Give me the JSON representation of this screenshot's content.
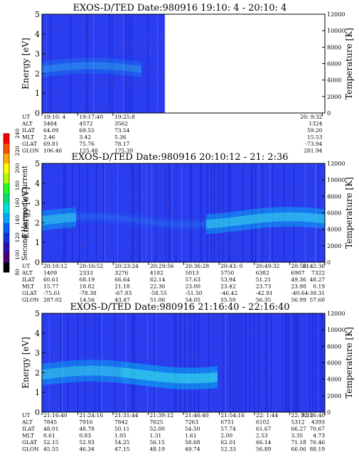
{
  "chart_data": [
    {
      "type": "heatmap",
      "title": "EXOS-D/TED   Date:980916  19:10: 4 - 20:10: 4",
      "ylabel": "Energy [eV]",
      "y2label": "Temperature [K]",
      "ylim": [
        0,
        5
      ],
      "y2lim": [
        0,
        12000
      ],
      "yticks": [
        "0",
        "1",
        "2",
        "3",
        "4",
        "5"
      ],
      "y2ticks": [
        "0",
        "2000",
        "4000",
        "6000",
        "8000",
        "10000",
        "12000"
      ],
      "time_range": [
        "19:10:04",
        "20:10:04"
      ],
      "data_coverage": [
        "19:10:04",
        "19:36:00"
      ],
      "band_center_ev": 2.2,
      "row_labels": [
        "UT",
        "ALT",
        "ILAT",
        "MLT",
        "GLAT",
        "GLON"
      ],
      "columns": [
        [
          "19:10: 4",
          "5484",
          "64.09",
          "2.46",
          "69.81",
          "106.46"
        ],
        [
          "19:17:40",
          "4572",
          "69.55",
          "3.42",
          "75.76",
          "125.48"
        ],
        [
          "19:25:8",
          "3562",
          "73.54",
          "5.36",
          "78.17",
          "175.39"
        ],
        [
          "20: 9:32",
          "1324",
          "59.20",
          "15.53",
          "-73.94",
          "281.94"
        ]
      ]
    },
    {
      "type": "heatmap",
      "title": "EXOS-D/TED   Date:980916  20:10:12 - 21: 2:36",
      "ylabel": "Energy [eV]",
      "y2label": "Temperature [K]",
      "ylim": [
        0,
        5
      ],
      "y2lim": [
        0,
        12000
      ],
      "yticks": [
        "0",
        "1",
        "2",
        "3",
        "4",
        "5"
      ],
      "y2ticks": [
        "0",
        "2000",
        "4000",
        "6000",
        "8000",
        "10000",
        "12000"
      ],
      "time_range": [
        "20:10:12",
        "21:02:36"
      ],
      "band_center_ev": 2.1,
      "row_labels": [
        "UT",
        "ALT",
        "ILAT",
        "MLT",
        "GLAT",
        "GLON"
      ],
      "columns": [
        [
          "20:10:12",
          "1409",
          "60.61",
          "15.77",
          "-75.61",
          "287.02"
        ],
        [
          "20:16:52",
          "2333",
          "68.19",
          "18.82",
          "-78.38",
          "14.56"
        ],
        [
          "20:23:24",
          "3276",
          "66.64",
          "21.18",
          "-67.83",
          "43.47"
        ],
        [
          "20:29:56",
          "4182",
          "62.14",
          "22.36",
          "-58.55",
          "51.06"
        ],
        [
          "20:36:28",
          "5013",
          "57.63",
          "23.00",
          "-51.50",
          "54.05"
        ],
        [
          "20:43: 0",
          "5750",
          "53.94",
          "23.42",
          "-46.42",
          "55.50"
        ],
        [
          "20:49:32",
          "6382",
          "51.21",
          "23.73",
          "-42.91",
          "56.35"
        ],
        [
          "20:56: 4",
          "6907",
          "49.36",
          "23.98",
          "-40.64",
          "56.99"
        ],
        [
          "21: 2:36",
          "7322",
          "48.27",
          "0.19",
          "-39.31",
          "57.60"
        ]
      ]
    },
    {
      "type": "heatmap",
      "title": "EXOS-D/TED   Date:980916  21:16:40 - 22:16:40",
      "ylabel": "Energy [eV]",
      "y2label": "Temperature [K]",
      "ylim": [
        0,
        5
      ],
      "y2lim": [
        0,
        12000
      ],
      "yticks": [
        "0",
        "1",
        "2",
        "3",
        "4",
        "5"
      ],
      "y2ticks": [
        "0",
        "2000",
        "4000",
        "6000",
        "8000",
        "10000",
        "12000"
      ],
      "time_range": [
        "21:16:40",
        "22:16:40"
      ],
      "band_center_ev": 1.9,
      "row_labels": [
        "UT",
        "ALT",
        "ILAT",
        "MLT",
        "GLAT",
        "GLON"
      ],
      "columns": [
        [
          "21:16:40",
          "7845",
          "48.01",
          "0.61",
          "52.15",
          "45.55"
        ],
        [
          "21:24:16",
          "7916",
          "48.78",
          "0.83",
          "52.93",
          "46.34"
        ],
        [
          "21:31:44",
          "7842",
          "50.11",
          "1.05",
          "54.25",
          "47.15"
        ],
        [
          "21:39:12",
          "7625",
          "52.00",
          "1.31",
          "56.15",
          "48.19"
        ],
        [
          "21:46:40",
          "7263",
          "54.50",
          "1.61",
          "58.68",
          "49.74"
        ],
        [
          "21:54:16",
          "6751",
          "57.74",
          "2.00",
          "62.01",
          "52.33"
        ],
        [
          "22: 1:44",
          "6102",
          "61.67",
          "2.53",
          "66.14",
          "56.89"
        ],
        [
          "22: 9:12",
          "5312",
          "66.27",
          "3.35",
          "71.18",
          "66.06"
        ],
        [
          "22:16:40",
          "4393",
          "70.67",
          "4.73",
          "76.46",
          "88.19"
        ]
      ]
    }
  ],
  "colorbar": {
    "label": "Second Harmonic Current",
    "ticks": [
      "80",
      "100",
      "120",
      "140",
      "160",
      "180",
      "200",
      "220",
      "240"
    ],
    "colors": [
      "#000000",
      "#4a0070",
      "#2a10b0",
      "#1030e0",
      "#0060ff",
      "#00a8ff",
      "#00e0e0",
      "#00e070",
      "#20ff20",
      "#b0ff00",
      "#ffff00",
      "#ffb000",
      "#ff5000",
      "#ff0000"
    ]
  },
  "colors": {
    "background": "#2a3ef0",
    "band": "#00c8f0",
    "band_core": "#40f0e8"
  }
}
